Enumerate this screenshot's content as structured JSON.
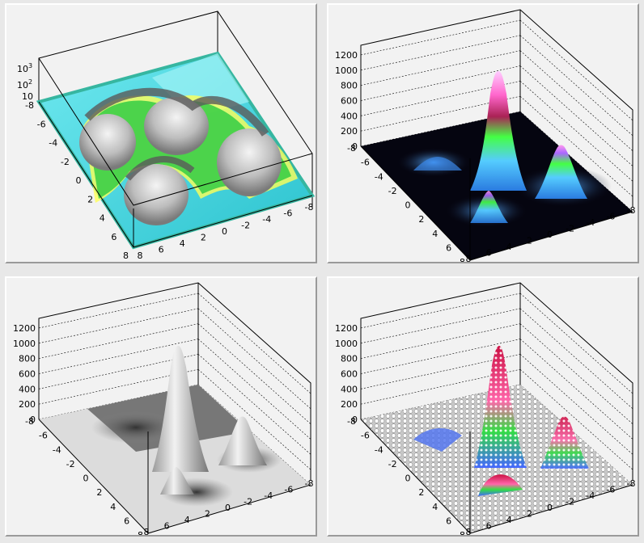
{
  "chart_data": [
    {
      "type": "surface-3d",
      "variant": "contour-colored-log",
      "x_ticks": [
        "8",
        "6",
        "4",
        "2",
        "0",
        "-2",
        "-4",
        "-6",
        "-8"
      ],
      "y_ticks": [
        "-8",
        "-6",
        "-4",
        "-2",
        "0",
        "2",
        "4",
        "6",
        "8"
      ],
      "z_ticks": [
        {
          "base": "10",
          "exp": "3"
        },
        {
          "base": "10",
          "exp": "2"
        },
        {
          "base": "10",
          "exp": ""
        }
      ],
      "xlim": [
        -8,
        8
      ],
      "ylim": [
        -8,
        8
      ],
      "zlim": [
        1,
        1000
      ],
      "log_z": true,
      "colors": {
        "floor": "#3fd0d8",
        "ridge": "#c9c9c9",
        "contour": [
          "#ffff33",
          "#33cc33",
          "#228833"
        ]
      }
    },
    {
      "type": "surface-3d",
      "variant": "gradient-colored",
      "x_ticks": [
        "8",
        "6",
        "4",
        "2",
        "0",
        "-2",
        "-4",
        "-6",
        "-8"
      ],
      "y_ticks": [
        "-8",
        "-6",
        "-4",
        "-2",
        "0",
        "2",
        "4",
        "6",
        "8"
      ],
      "z_ticks": [
        "1200",
        "1000",
        "800",
        "600",
        "400",
        "200",
        "0"
      ],
      "xlim": [
        -8,
        8
      ],
      "ylim": [
        -8,
        8
      ],
      "zlim": [
        0,
        1200
      ],
      "grid": true,
      "peaks": [
        {
          "x": 0,
          "y": 0,
          "height": 1000
        },
        {
          "x": -4,
          "y": 4,
          "height": 500
        },
        {
          "x": 4,
          "y": 4,
          "height": 200
        },
        {
          "x": -4,
          "y": -4,
          "height": 150
        }
      ],
      "colors": {
        "floor": "#050510",
        "low": "#3aa0ff",
        "mid": "#33ff44",
        "high": "#cc1144",
        "top": "#ffaaff"
      }
    },
    {
      "type": "surface-3d",
      "variant": "gray-shaded",
      "x_ticks": [
        "8",
        "6",
        "4",
        "2",
        "0",
        "-2",
        "-4",
        "-6",
        "-8"
      ],
      "y_ticks": [
        "-8",
        "-6",
        "-4",
        "-2",
        "0",
        "2",
        "4",
        "6",
        "8"
      ],
      "z_ticks": [
        "1200",
        "1000",
        "800",
        "600",
        "400",
        "200",
        "0"
      ],
      "xlim": [
        -8,
        8
      ],
      "ylim": [
        -8,
        8
      ],
      "zlim": [
        0,
        1200
      ],
      "grid": true,
      "peaks": [
        {
          "x": 0,
          "y": 0,
          "height": 1000
        },
        {
          "x": -4,
          "y": 4,
          "height": 500
        },
        {
          "x": 4,
          "y": 4,
          "height": 200
        },
        {
          "x": -4,
          "y": -4,
          "height": 150
        }
      ],
      "colors": {
        "surface": "#d8d8d8",
        "shadow": "#555555"
      }
    },
    {
      "type": "surface-3d",
      "variant": "lego-markers",
      "x_ticks": [
        "8",
        "6",
        "4",
        "2",
        "0",
        "-2",
        "-4",
        "-6",
        "-8"
      ],
      "y_ticks": [
        "-8",
        "-6",
        "-4",
        "-2",
        "0",
        "2",
        "4",
        "6",
        "8"
      ],
      "z_ticks": [
        "1200",
        "1000",
        "800",
        "600",
        "400",
        "200",
        "0"
      ],
      "xlim": [
        -8,
        8
      ],
      "ylim": [
        -8,
        8
      ],
      "zlim": [
        0,
        1200
      ],
      "grid": true,
      "peaks": [
        {
          "x": 0,
          "y": 0,
          "height": 1000
        },
        {
          "x": -4,
          "y": 4,
          "height": 500
        },
        {
          "x": 4,
          "y": 4,
          "height": 200
        },
        {
          "x": -4,
          "y": -4,
          "height": 150
        }
      ],
      "colors": {
        "marker": "#ffffff",
        "high": "#cc1144",
        "mid": "#33dd44",
        "low": "#4466ff"
      }
    }
  ]
}
